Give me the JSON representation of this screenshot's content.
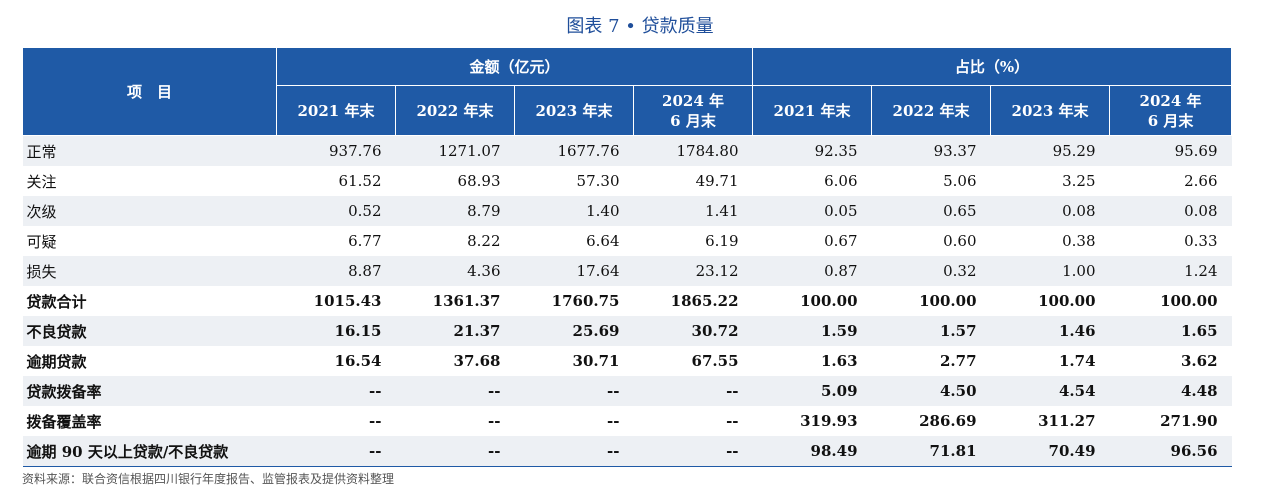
{
  "title": "图表 7 • 贷款质量",
  "header": {
    "item": "项　目",
    "group_amount": "金额（亿元）",
    "group_ratio": "占比（%）",
    "periods": [
      "2021 年末",
      "2022 年末",
      "2023 年末",
      "2024 年\n6 月末"
    ]
  },
  "rows": [
    {
      "name": "正常",
      "values": [
        "937.76",
        "1271.07",
        "1677.76",
        "1784.80",
        "92.35",
        "93.37",
        "95.29",
        "95.69"
      ]
    },
    {
      "name": "关注",
      "values": [
        "61.52",
        "68.93",
        "57.30",
        "49.71",
        "6.06",
        "5.06",
        "3.25",
        "2.66"
      ]
    },
    {
      "name": "次级",
      "values": [
        "0.52",
        "8.79",
        "1.40",
        "1.41",
        "0.05",
        "0.65",
        "0.08",
        "0.08"
      ]
    },
    {
      "name": "可疑",
      "values": [
        "6.77",
        "8.22",
        "6.64",
        "6.19",
        "0.67",
        "0.60",
        "0.38",
        "0.33"
      ]
    },
    {
      "name": "损失",
      "values": [
        "8.87",
        "4.36",
        "17.64",
        "23.12",
        "0.87",
        "0.32",
        "1.00",
        "1.24"
      ]
    },
    {
      "name": "贷款合计",
      "values": [
        "1015.43",
        "1361.37",
        "1760.75",
        "1865.22",
        "100.00",
        "100.00",
        "100.00",
        "100.00"
      ]
    },
    {
      "name": "不良贷款",
      "values": [
        "16.15",
        "21.37",
        "25.69",
        "30.72",
        "1.59",
        "1.57",
        "1.46",
        "1.65"
      ]
    },
    {
      "name": "逾期贷款",
      "values": [
        "16.54",
        "37.68",
        "30.71",
        "67.55",
        "1.63",
        "2.77",
        "1.74",
        "3.62"
      ]
    },
    {
      "name": "贷款拨备率",
      "values": [
        "--",
        "--",
        "--",
        "--",
        "5.09",
        "4.50",
        "4.54",
        "4.48"
      ]
    },
    {
      "name": "拨备覆盖率",
      "values": [
        "--",
        "--",
        "--",
        "--",
        "319.93",
        "286.69",
        "311.27",
        "271.90"
      ]
    },
    {
      "name": "逾期 90 天以上贷款/不良贷款",
      "values": [
        "--",
        "--",
        "--",
        "--",
        "98.49",
        "71.81",
        "70.49",
        "96.56"
      ]
    }
  ],
  "source": "资料来源：联合资信根据四川银行年度报告、监管报表及提供资料整理"
}
